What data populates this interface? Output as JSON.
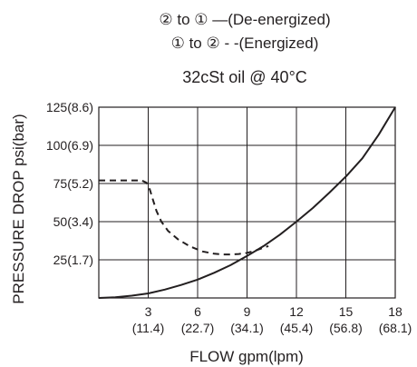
{
  "chart_data": {
    "type": "line",
    "legend": [
      {
        "text": "② to ① —(De-energized)",
        "style": "solid"
      },
      {
        "text": "① to ② - -(Energized)",
        "style": "dashed"
      }
    ],
    "title": "32cSt oil @ 40°C",
    "xlabel": "FLOW gpm(lpm)",
    "ylabel": "PRESSURE DROP psi(bar)",
    "xlim": [
      0,
      18
    ],
    "ylim": [
      0,
      125
    ],
    "grid": true,
    "x_ticks": [
      {
        "value": 3,
        "label": "3",
        "sublabel": "(11.4)"
      },
      {
        "value": 6,
        "label": "6",
        "sublabel": "(22.7)"
      },
      {
        "value": 9,
        "label": "9",
        "sublabel": "(34.1)"
      },
      {
        "value": 12,
        "label": "12",
        "sublabel": "(45.4)"
      },
      {
        "value": 15,
        "label": "15",
        "sublabel": "(56.8)"
      },
      {
        "value": 18,
        "label": "18",
        "sublabel": "(68.1)"
      }
    ],
    "y_ticks": [
      {
        "value": 25,
        "label": "25(1.7)"
      },
      {
        "value": 50,
        "label": "50(3.4)"
      },
      {
        "value": 75,
        "label": "75(5.2)"
      },
      {
        "value": 100,
        "label": "100(6.9)"
      },
      {
        "value": 125,
        "label": "125(8.6)"
      }
    ],
    "series": [
      {
        "style": "solid",
        "color": "#231f20",
        "x": [
          0,
          1,
          2,
          3,
          4,
          5,
          6,
          7,
          8,
          9,
          10,
          11,
          12,
          13,
          14,
          15,
          16,
          17,
          18
        ],
        "y": [
          0,
          0.5,
          1.5,
          3,
          5.5,
          8.5,
          12,
          16.5,
          21.5,
          27.5,
          34,
          41.5,
          50,
          59,
          69,
          79.5,
          91.5,
          107,
          125
        ]
      },
      {
        "style": "dashed",
        "color": "#231f20",
        "x": [
          0,
          1,
          2,
          2.6,
          2.9,
          3.1,
          3.3,
          3.5,
          3.8,
          4.2,
          4.8,
          5.5,
          6.3,
          7.0,
          7.5,
          8.0,
          8.5,
          9.0,
          9.5,
          10.0,
          10.3
        ],
        "y": [
          77,
          77,
          77,
          77,
          75.5,
          71,
          64,
          57,
          50,
          44,
          38.5,
          34,
          30.5,
          29,
          28.5,
          28.5,
          28.8,
          29.5,
          31,
          33,
          34
        ]
      }
    ]
  }
}
